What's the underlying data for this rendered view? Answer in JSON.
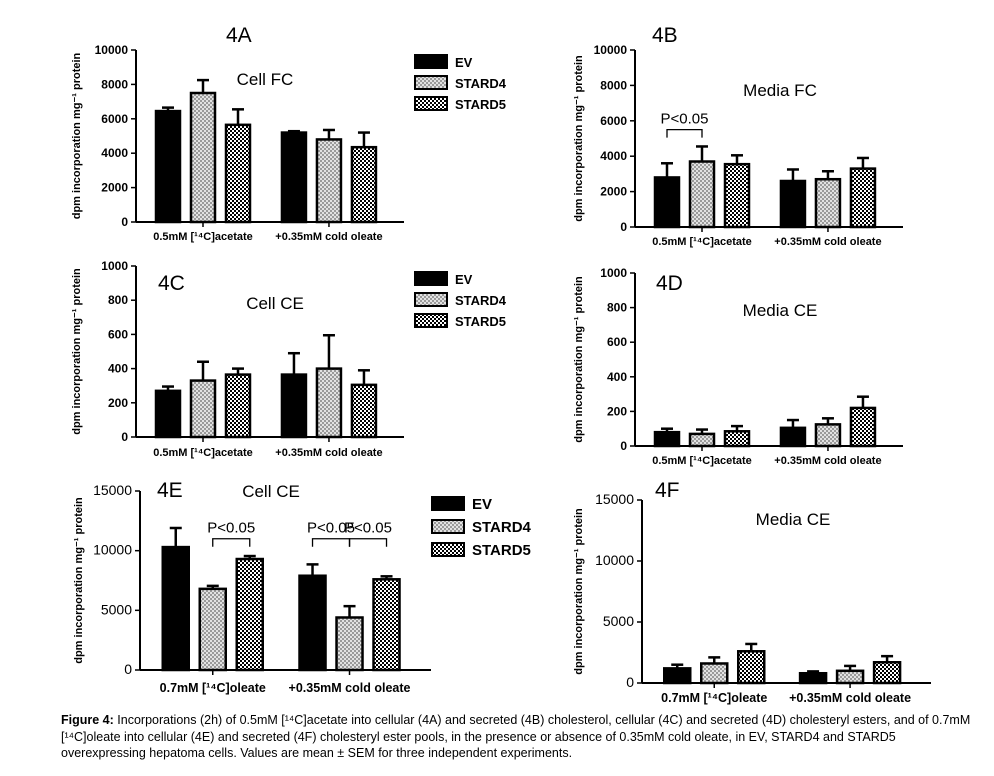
{
  "caption": {
    "label": "Figure 4:",
    "text": "Incorporations (2h) of 0.5mM [¹⁴C]acetate into cellular (4A) and secreted (4B) cholesterol, cellular (4C) and secreted (4D) cholesteryl esters, and of 0.7mM [¹⁴C]oleate into cellular (4E) and secreted (4F) cholesteryl ester pools, in the presence or absence of 0.35mM cold oleate, in EV, STARD4 and STARD5 overexpressing hepatoma cells.  Values are mean ± SEM for three independent experiments."
  },
  "colors": {
    "EV": "#000000",
    "STARD4": "#bdbdbd",
    "STARD5": "#555555",
    "axis": "#000000"
  },
  "chart_data": [
    {
      "type": "bar",
      "panel": "4A",
      "title": "Cell FC",
      "ylabel": "dpm incorporation mg⁻¹ protein",
      "categories": [
        "0.5mM [¹⁴C]acetate",
        "+0.35mM cold oleate"
      ],
      "ylim": [
        0,
        10000
      ],
      "yticks": [
        0,
        2000,
        4000,
        6000,
        8000,
        10000
      ],
      "legend": [
        "EV",
        "STARD4",
        "STARD5"
      ],
      "series": [
        {
          "name": "EV",
          "values": [
            6450,
            5200
          ],
          "errors": [
            200,
            80
          ]
        },
        {
          "name": "STARD4",
          "values": [
            7500,
            4800
          ],
          "errors": [
            750,
            550
          ]
        },
        {
          "name": "STARD5",
          "values": [
            5650,
            4350
          ],
          "errors": [
            900,
            850
          ]
        }
      ],
      "annotations": []
    },
    {
      "type": "bar",
      "panel": "4B",
      "title": "Media FC",
      "ylabel": "dpm incorporation mg⁻¹ protein",
      "categories": [
        "0.5mM [¹⁴C]acetate",
        "+0.35mM cold oleate"
      ],
      "ylim": [
        0,
        10000
      ],
      "yticks": [
        0,
        2000,
        4000,
        6000,
        8000,
        10000
      ],
      "legend": [],
      "series": [
        {
          "name": "EV",
          "values": [
            2800,
            2600
          ],
          "errors": [
            800,
            650
          ]
        },
        {
          "name": "STARD4",
          "values": [
            3700,
            2700
          ],
          "errors": [
            850,
            450
          ]
        },
        {
          "name": "STARD5",
          "values": [
            3550,
            3300
          ],
          "errors": [
            500,
            600
          ]
        }
      ],
      "annotations": [
        {
          "text": "P<0.05",
          "group": 0,
          "from": 0,
          "to": 1,
          "at": 5500
        }
      ]
    },
    {
      "type": "bar",
      "panel": "4C",
      "title": "Cell CE",
      "ylabel": "dpm incorporation mg⁻¹ protein",
      "categories": [
        "0.5mM [¹⁴C]acetate",
        "+0.35mM cold oleate"
      ],
      "ylim": [
        0,
        1000
      ],
      "yticks": [
        0,
        200,
        400,
        600,
        800,
        1000
      ],
      "legend": [
        "EV",
        "STARD4",
        "STARD5"
      ],
      "series": [
        {
          "name": "EV",
          "values": [
            270,
            365
          ],
          "errors": [
            25,
            125
          ]
        },
        {
          "name": "STARD4",
          "values": [
            330,
            400
          ],
          "errors": [
            110,
            195
          ]
        },
        {
          "name": "STARD5",
          "values": [
            365,
            305
          ],
          "errors": [
            35,
            85
          ]
        }
      ],
      "annotations": []
    },
    {
      "type": "bar",
      "panel": "4D",
      "title": "Media CE",
      "ylabel": "dpm incorporation mg⁻¹ protein",
      "categories": [
        "0.5mM [¹⁴C]acetate",
        "+0.35mM cold oleate"
      ],
      "ylim": [
        0,
        1000
      ],
      "yticks": [
        0,
        200,
        400,
        600,
        800,
        1000
      ],
      "legend": [],
      "series": [
        {
          "name": "EV",
          "values": [
            80,
            105
          ],
          "errors": [
            20,
            45
          ]
        },
        {
          "name": "STARD4",
          "values": [
            70,
            125
          ],
          "errors": [
            25,
            35
          ]
        },
        {
          "name": "STARD5",
          "values": [
            85,
            220
          ],
          "errors": [
            30,
            65
          ]
        }
      ],
      "annotations": []
    },
    {
      "type": "bar",
      "panel": "4E",
      "title": "Cell CE",
      "ylabel": "dpm incorporation mg⁻¹ protein",
      "categories": [
        "0.7mM [¹⁴C]oleate",
        "+0.35mM cold oleate"
      ],
      "ylim": [
        0,
        15000
      ],
      "yticks": [
        0,
        5000,
        10000,
        15000
      ],
      "legend": [
        "EV",
        "STARD4",
        "STARD5"
      ],
      "series": [
        {
          "name": "EV",
          "values": [
            10300,
            7900
          ],
          "errors": [
            1600,
            950
          ]
        },
        {
          "name": "STARD4",
          "values": [
            6800,
            4400
          ],
          "errors": [
            250,
            950
          ]
        },
        {
          "name": "STARD5",
          "values": [
            9300,
            7600
          ],
          "errors": [
            250,
            250
          ]
        }
      ],
      "annotations": [
        {
          "text": "P<0.05",
          "group": 0,
          "from": 1,
          "to": 2,
          "at": 11000
        },
        {
          "text": "P<0.05",
          "group": 1,
          "from": 0,
          "to": 1,
          "at": 11000
        },
        {
          "text": "P<0.05",
          "group": 1,
          "from": 1,
          "to": 2,
          "at": 11000
        }
      ]
    },
    {
      "type": "bar",
      "panel": "4F",
      "title": "Media CE",
      "ylabel": "dpm incorporation mg⁻¹ protein",
      "categories": [
        "0.7mM [¹⁴C]oleate",
        "+0.35mM cold oleate"
      ],
      "ylim": [
        0,
        15000
      ],
      "yticks": [
        0,
        5000,
        10000,
        15000
      ],
      "legend": [],
      "series": [
        {
          "name": "EV",
          "values": [
            1200,
            800
          ],
          "errors": [
            300,
            150
          ]
        },
        {
          "name": "STARD4",
          "values": [
            1600,
            1000
          ],
          "errors": [
            500,
            400
          ]
        },
        {
          "name": "STARD5",
          "values": [
            2600,
            1700
          ],
          "errors": [
            600,
            500
          ]
        }
      ],
      "annotations": []
    }
  ]
}
